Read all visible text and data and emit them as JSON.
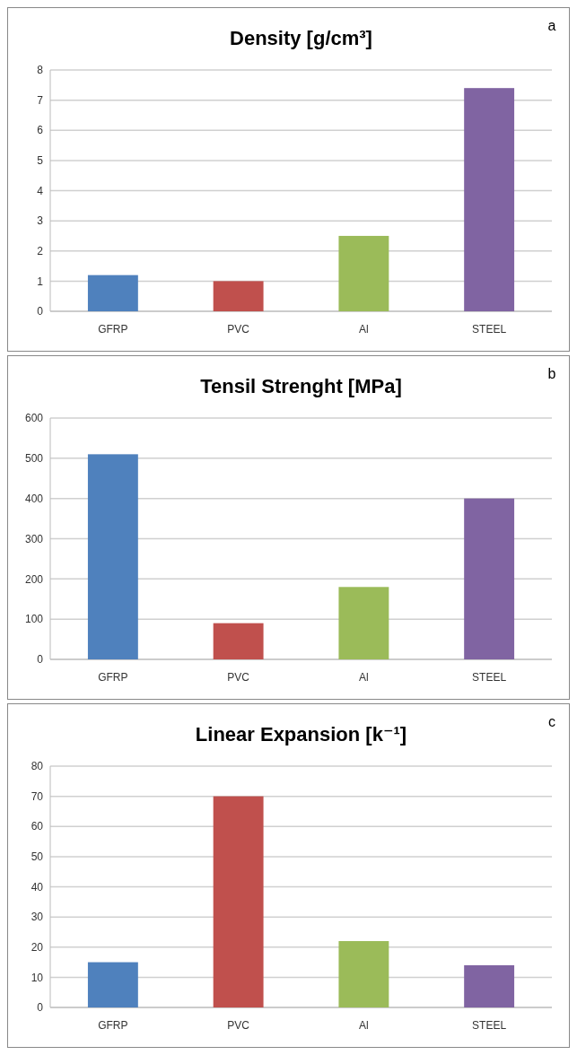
{
  "chart_data": [
    {
      "type": "bar",
      "title": "Density [g/cm³]",
      "categories": [
        "GFRP",
        "PVC",
        "Al",
        "STEEL"
      ],
      "values": [
        1.2,
        1.0,
        2.5,
        7.4
      ],
      "colors": [
        "#4f81bd",
        "#c0504d",
        "#9bbb59",
        "#8064a2"
      ],
      "ylim": [
        0,
        8
      ],
      "yticks": [
        0,
        1,
        2,
        3,
        4,
        5,
        6,
        7,
        8
      ],
      "grid": "y",
      "annotations": [
        "a"
      ]
    },
    {
      "type": "bar",
      "title": "Tensil Strenght [MPa]",
      "categories": [
        "GFRP",
        "PVC",
        "Al",
        "STEEL"
      ],
      "values": [
        510,
        90,
        180,
        400
      ],
      "colors": [
        "#4f81bd",
        "#c0504d",
        "#9bbb59",
        "#8064a2"
      ],
      "ylim": [
        0,
        600
      ],
      "yticks": [
        0,
        100,
        200,
        300,
        400,
        500,
        600
      ],
      "grid": "y",
      "annotations": [
        "b"
      ]
    },
    {
      "type": "bar",
      "title": "Linear Expansion [k⁻¹]",
      "categories": [
        "GFRP",
        "PVC",
        "Al",
        "STEEL"
      ],
      "values": [
        15,
        70,
        22,
        14
      ],
      "colors": [
        "#4f81bd",
        "#c0504d",
        "#9bbb59",
        "#8064a2"
      ],
      "ylim": [
        0,
        80
      ],
      "yticks": [
        0,
        10,
        20,
        30,
        40,
        50,
        60,
        70,
        80
      ],
      "grid": "y",
      "annotations": [
        "c"
      ]
    }
  ]
}
